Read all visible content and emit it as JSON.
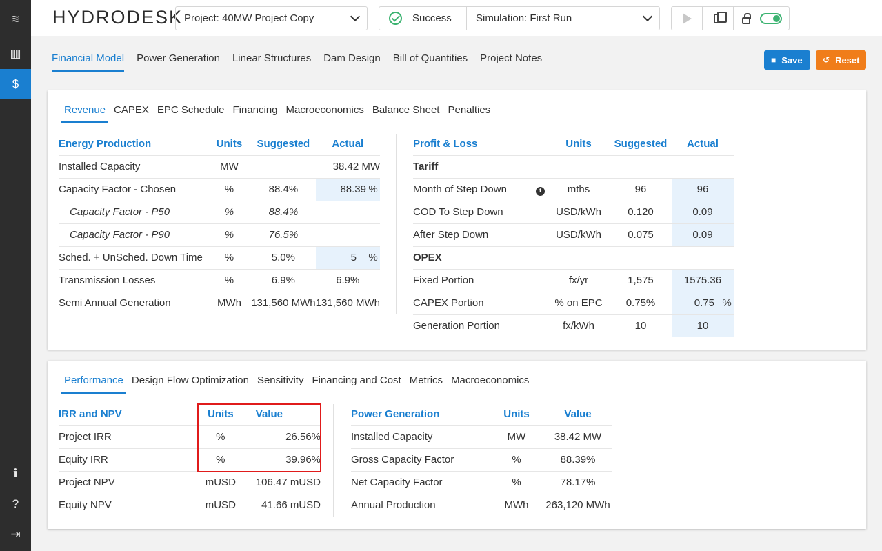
{
  "app": {
    "title": "HYDRODESK"
  },
  "sidebar": {
    "items": [
      {
        "name": "logo",
        "glyph": "≋"
      },
      {
        "name": "map",
        "glyph": "▥"
      },
      {
        "name": "financial",
        "glyph": "$"
      }
    ],
    "bottom": [
      {
        "name": "info",
        "glyph": "ℹ"
      },
      {
        "name": "help",
        "glyph": "?"
      },
      {
        "name": "logout",
        "glyph": "⇥"
      }
    ]
  },
  "header": {
    "project": "Project: 40MW Project Copy",
    "status": "Success",
    "simulation": "Simulation: First Run"
  },
  "main_tabs": [
    "Financial Model",
    "Power Generation",
    "Linear Structures",
    "Dam Design",
    "Bill of Quantities",
    "Project Notes"
  ],
  "actions": {
    "save": "Save",
    "reset": "Reset"
  },
  "section1": {
    "tabs": [
      "Revenue",
      "CAPEX",
      "EPC Schedule",
      "Financing",
      "Macroeconomics",
      "Balance Sheet",
      "Penalties"
    ],
    "energy": {
      "headers": [
        "Energy Production",
        "Units",
        "Suggested",
        "Actual"
      ],
      "rows": [
        {
          "label": "Installed Capacity",
          "units": "MW",
          "suggested": "",
          "actual": "38.42 MW"
        },
        {
          "label": "Capacity Factor - Chosen",
          "units": "%",
          "suggested": "88.4%",
          "actual": "88.39",
          "actual_unit": "%"
        },
        {
          "label": "Capacity Factor - P50",
          "units": "%",
          "suggested": "88.4%",
          "actual": ""
        },
        {
          "label": "Capacity Factor - P90",
          "units": "%",
          "suggested": "76.5%",
          "actual": ""
        },
        {
          "label": "Sched. + UnSched. Down Time",
          "units": "%",
          "suggested": "5.0%",
          "actual": "5",
          "actual_unit": "%"
        },
        {
          "label": "Transmission Losses",
          "units": "%",
          "suggested": "6.9%",
          "actual": "6.9%"
        },
        {
          "label": "Semi Annual Generation",
          "units": "MWh",
          "suggested": "131,560 MWh",
          "actual": "131,560 MWh"
        }
      ]
    },
    "pl": {
      "headers": [
        "Profit & Loss",
        "Units",
        "Suggested",
        "Actual"
      ],
      "tariff_label": "Tariff",
      "opex_label": "OPEX",
      "tariff_rows": [
        {
          "label": "Month of Step Down",
          "units": "mths",
          "suggested": "96",
          "actual": "96"
        },
        {
          "label": "COD To Step Down",
          "units": "USD/kWh",
          "suggested": "0.120",
          "actual": "0.09"
        },
        {
          "label": "After Step Down",
          "units": "USD/kWh",
          "suggested": "0.075",
          "actual": "0.09"
        }
      ],
      "opex_rows": [
        {
          "label": "Fixed Portion",
          "units": "fx/yr",
          "suggested": "1,575",
          "actual": "1575.36"
        },
        {
          "label": "CAPEX Portion",
          "units": "% on EPC",
          "suggested": "0.75%",
          "actual": "0.75",
          "actual_unit": "%"
        },
        {
          "label": "Generation Portion",
          "units": "fx/kWh",
          "suggested": "10",
          "actual": "10"
        }
      ],
      "info_glyph": "i"
    }
  },
  "section2": {
    "tabs": [
      "Performance",
      "Design Flow Optimization",
      "Sensitivity",
      "Financing and Cost",
      "Metrics",
      "Macroeconomics"
    ],
    "irr": {
      "headers": [
        "IRR and NPV",
        "Units",
        "Value"
      ],
      "rows": [
        {
          "label": "Project IRR",
          "units": "%",
          "value": "26.56%"
        },
        {
          "label": "Equity IRR",
          "units": "%",
          "value": "39.96%"
        },
        {
          "label": "Project NPV",
          "units": "mUSD",
          "value": "106.47 mUSD"
        },
        {
          "label": "Equity NPV",
          "units": "mUSD",
          "value": "41.66 mUSD"
        }
      ]
    },
    "power": {
      "headers": [
        "Power Generation",
        "Units",
        "Value"
      ],
      "rows": [
        {
          "label": "Installed Capacity",
          "units": "MW",
          "value": "38.42 MW"
        },
        {
          "label": "Gross Capacity Factor",
          "units": "%",
          "value": "88.39%"
        },
        {
          "label": "Net Capacity Factor",
          "units": "%",
          "value": "78.17%"
        },
        {
          "label": "Annual Production",
          "units": "MWh",
          "value": "263,120 MWh"
        }
      ]
    }
  }
}
